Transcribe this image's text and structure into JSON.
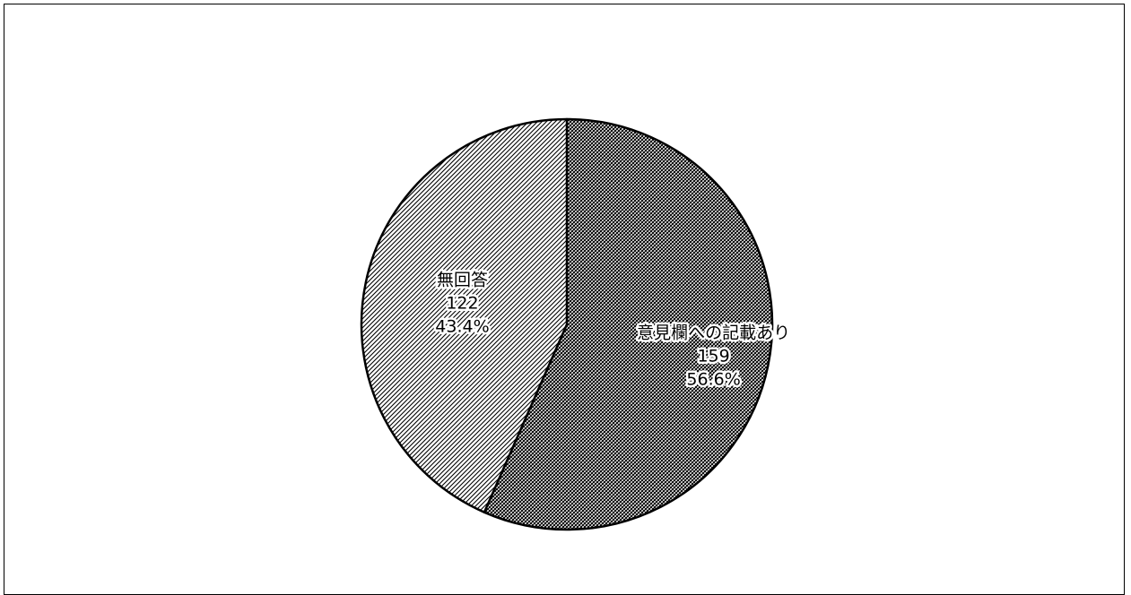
{
  "chart_data": {
    "type": "pie",
    "title": "",
    "slices": [
      {
        "label": "意見欄への記載あり",
        "value": 159,
        "percent": "56.6%",
        "pattern": "crosshatch"
      },
      {
        "label": "無回答",
        "value": 122,
        "percent": "43.4%",
        "pattern": "diagonal"
      }
    ],
    "start_angle_deg": 0,
    "direction": "clockwise",
    "legend": "none",
    "colors": {
      "stroke": "#000000",
      "pattern_ink": "#000000",
      "background": "#ffffff"
    }
  }
}
